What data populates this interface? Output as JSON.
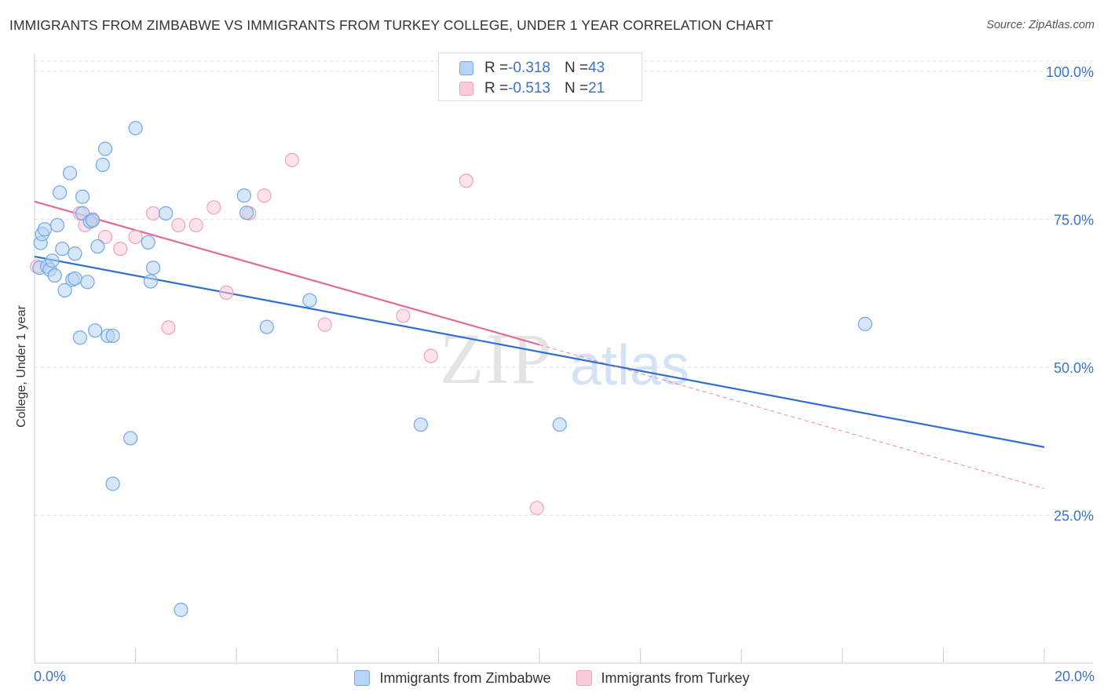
{
  "header": {
    "title": "IMMIGRANTS FROM ZIMBABWE VS IMMIGRANTS FROM TURKEY COLLEGE, UNDER 1 YEAR CORRELATION CHART",
    "source": "Source: ZipAtlas.com"
  },
  "legend": {
    "rows": [
      {
        "r_label": "R = ",
        "r_value": "-0.318",
        "n_label": "N = ",
        "n_value": "43"
      },
      {
        "r_label": "R = ",
        "r_value": "-0.513",
        "n_label": "N = ",
        "n_value": "21"
      }
    ]
  },
  "watermark": {
    "zip": "ZIP",
    "atlas": "atlas"
  },
  "chart_data": {
    "type": "scatter",
    "title": "IMMIGRANTS FROM ZIMBABWE VS IMMIGRANTS FROM TURKEY COLLEGE, UNDER 1 YEAR CORRELATION CHART",
    "ylabel": "College, Under 1 year",
    "xlim": [
      0,
      20
    ],
    "ylim": [
      0,
      102.5
    ],
    "x_ticks": [
      "0.0%",
      "20.0%"
    ],
    "y_ticks": [
      {
        "value": 25,
        "label": "25.0%"
      },
      {
        "value": 50,
        "label": "50.0%"
      },
      {
        "value": 75,
        "label": "75.0%"
      },
      {
        "value": 100,
        "label": "100.0%"
      }
    ],
    "grid": true,
    "legend_position": "top-center",
    "series": [
      {
        "name": "Immigrants from Zimbabwe",
        "color": "#6fa8e8",
        "fill": "#b8d3f3",
        "line_color": "#2f6fd0",
        "r": -0.318,
        "n": 43,
        "trend": {
          "x": [
            0,
            20
          ],
          "y": [
            68.7,
            36.5
          ]
        },
        "points": [
          [
            0.1,
            66.8
          ],
          [
            0.12,
            71.0
          ],
          [
            0.15,
            72.5
          ],
          [
            0.2,
            73.3
          ],
          [
            0.25,
            67.0
          ],
          [
            0.3,
            66.5
          ],
          [
            0.35,
            68.0
          ],
          [
            0.4,
            65.5
          ],
          [
            0.45,
            74.0
          ],
          [
            0.5,
            79.5
          ],
          [
            0.55,
            70.0
          ],
          [
            0.6,
            63.0
          ],
          [
            0.7,
            82.8
          ],
          [
            0.75,
            64.8
          ],
          [
            0.8,
            65.0
          ],
          [
            0.8,
            69.2
          ],
          [
            0.9,
            55.0
          ],
          [
            0.95,
            76.0
          ],
          [
            0.95,
            78.8
          ],
          [
            1.05,
            64.4
          ],
          [
            1.1,
            74.6
          ],
          [
            1.15,
            74.8
          ],
          [
            1.2,
            56.2
          ],
          [
            1.25,
            70.4
          ],
          [
            1.35,
            84.2
          ],
          [
            1.4,
            86.9
          ],
          [
            1.45,
            55.3
          ],
          [
            1.55,
            55.3
          ],
          [
            1.55,
            30.3
          ],
          [
            1.9,
            38.0
          ],
          [
            2.0,
            90.4
          ],
          [
            2.25,
            71.1
          ],
          [
            2.3,
            64.5
          ],
          [
            2.35,
            66.8
          ],
          [
            2.6,
            76.0
          ],
          [
            2.9,
            9.0
          ],
          [
            4.15,
            79.0
          ],
          [
            4.2,
            76.1
          ],
          [
            4.6,
            56.8
          ],
          [
            5.45,
            61.3
          ],
          [
            7.65,
            40.3
          ],
          [
            10.4,
            40.3
          ],
          [
            16.45,
            57.3
          ]
        ]
      },
      {
        "name": "Immigrants from Turkey",
        "color": "#f2a2bd",
        "fill": "#f8cbdb",
        "line_color": "#e06b94",
        "r": -0.513,
        "n": 21,
        "trend": {
          "x": [
            0,
            10
          ],
          "y": [
            78.0,
            53.8
          ]
        },
        "trend_extension": {
          "x": [
            10,
            20
          ],
          "y": [
            53.8,
            29.5
          ]
        },
        "points": [
          [
            0.05,
            67.0
          ],
          [
            0.9,
            76.0
          ],
          [
            1.0,
            74.0
          ],
          [
            1.15,
            75.0
          ],
          [
            1.4,
            72.0
          ],
          [
            1.7,
            70.0
          ],
          [
            2.0,
            72.0
          ],
          [
            2.35,
            76.0
          ],
          [
            2.65,
            56.7
          ],
          [
            2.85,
            74.0
          ],
          [
            3.2,
            74.0
          ],
          [
            3.55,
            77.0
          ],
          [
            3.8,
            62.6
          ],
          [
            4.25,
            76.0
          ],
          [
            4.55,
            79.0
          ],
          [
            5.1,
            85.0
          ],
          [
            5.75,
            57.2
          ],
          [
            7.3,
            58.7
          ],
          [
            7.85,
            51.9
          ],
          [
            8.55,
            81.5
          ],
          [
            9.95,
            26.2
          ]
        ]
      }
    ]
  }
}
